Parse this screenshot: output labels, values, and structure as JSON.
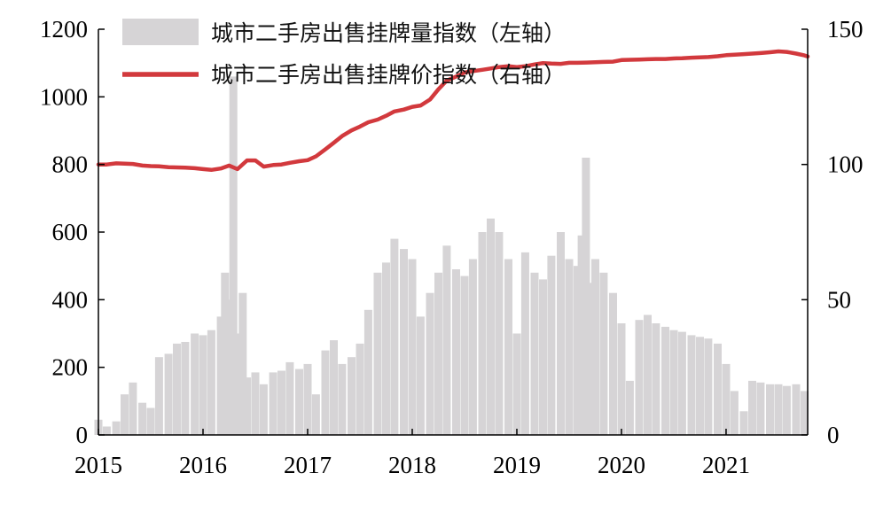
{
  "chart_data": {
    "type": "bar+line",
    "title": "",
    "x_range": [
      2015.0,
      2021.78
    ],
    "x_ticks": [
      "2015",
      "2016",
      "2017",
      "2018",
      "2019",
      "2020",
      "2021"
    ],
    "y_left": {
      "range": [
        0,
        1200
      ],
      "ticks": [
        "0",
        "200",
        "400",
        "600",
        "800",
        "1000",
        "1200"
      ]
    },
    "y_right": {
      "range": [
        0,
        150
      ],
      "ticks": [
        "0",
        "50",
        "100",
        "150"
      ]
    },
    "grid": false,
    "legend_placement": "top",
    "series": [
      {
        "name": "城市二手房出售挂牌量指数（左轴）",
        "kind": "bar",
        "axis": "left",
        "color": "#d6d4d6",
        "points": [
          [
            2015.0,
            45
          ],
          [
            2015.08,
            25
          ],
          [
            2015.17,
            40
          ],
          [
            2015.25,
            120
          ],
          [
            2015.33,
            155
          ],
          [
            2015.42,
            95
          ],
          [
            2015.5,
            80
          ],
          [
            2015.58,
            230
          ],
          [
            2015.67,
            240
          ],
          [
            2015.75,
            270
          ],
          [
            2015.83,
            275
          ],
          [
            2015.92,
            300
          ],
          [
            2016.0,
            295
          ],
          [
            2016.08,
            310
          ],
          [
            2016.17,
            350
          ],
          [
            2016.21,
            480
          ],
          [
            2016.25,
            400
          ],
          [
            2016.29,
            1060
          ],
          [
            2016.33,
            300
          ],
          [
            2016.38,
            420
          ],
          [
            2016.42,
            170
          ],
          [
            2016.5,
            185
          ],
          [
            2016.58,
            150
          ],
          [
            2016.67,
            185
          ],
          [
            2016.75,
            190
          ],
          [
            2016.83,
            215
          ],
          [
            2016.92,
            195
          ],
          [
            2017.0,
            210
          ],
          [
            2017.08,
            120
          ],
          [
            2017.17,
            250
          ],
          [
            2017.25,
            280
          ],
          [
            2017.33,
            210
          ],
          [
            2017.42,
            230
          ],
          [
            2017.5,
            270
          ],
          [
            2017.58,
            370
          ],
          [
            2017.67,
            480
          ],
          [
            2017.75,
            510
          ],
          [
            2017.83,
            580
          ],
          [
            2017.92,
            550
          ],
          [
            2018.0,
            520
          ],
          [
            2018.08,
            350
          ],
          [
            2018.17,
            420
          ],
          [
            2018.25,
            480
          ],
          [
            2018.33,
            560
          ],
          [
            2018.42,
            490
          ],
          [
            2018.5,
            470
          ],
          [
            2018.58,
            520
          ],
          [
            2018.67,
            600
          ],
          [
            2018.75,
            640
          ],
          [
            2018.83,
            600
          ],
          [
            2018.92,
            520
          ],
          [
            2019.0,
            300
          ],
          [
            2019.08,
            540
          ],
          [
            2019.17,
            480
          ],
          [
            2019.25,
            460
          ],
          [
            2019.33,
            530
          ],
          [
            2019.42,
            600
          ],
          [
            2019.5,
            520
          ],
          [
            2019.58,
            500
          ],
          [
            2019.62,
            590
          ],
          [
            2019.66,
            820
          ],
          [
            2019.7,
            450
          ],
          [
            2019.75,
            520
          ],
          [
            2019.83,
            480
          ],
          [
            2019.92,
            420
          ],
          [
            2020.0,
            330
          ],
          [
            2020.08,
            160
          ],
          [
            2020.17,
            340
          ],
          [
            2020.25,
            355
          ],
          [
            2020.33,
            330
          ],
          [
            2020.42,
            320
          ],
          [
            2020.5,
            310
          ],
          [
            2020.58,
            305
          ],
          [
            2020.67,
            295
          ],
          [
            2020.75,
            290
          ],
          [
            2020.83,
            285
          ],
          [
            2020.92,
            270
          ],
          [
            2021.0,
            210
          ],
          [
            2021.08,
            130
          ],
          [
            2021.17,
            70
          ],
          [
            2021.25,
            160
          ],
          [
            2021.33,
            155
          ],
          [
            2021.42,
            150
          ],
          [
            2021.5,
            150
          ],
          [
            2021.58,
            145
          ],
          [
            2021.67,
            150
          ],
          [
            2021.75,
            130
          ]
        ]
      },
      {
        "name": "城市二手房出售挂牌价指数（右轴）",
        "kind": "line",
        "axis": "right",
        "color": "#d2393d",
        "points": [
          [
            2015.0,
            100
          ],
          [
            2015.08,
            100
          ],
          [
            2015.17,
            100.4
          ],
          [
            2015.25,
            100.3
          ],
          [
            2015.33,
            100.2
          ],
          [
            2015.42,
            99.6
          ],
          [
            2015.5,
            99.4
          ],
          [
            2015.58,
            99.3
          ],
          [
            2015.67,
            99.0
          ],
          [
            2015.75,
            98.9
          ],
          [
            2015.83,
            98.8
          ],
          [
            2015.92,
            98.6
          ],
          [
            2016.0,
            98.3
          ],
          [
            2016.08,
            98.0
          ],
          [
            2016.17,
            98.5
          ],
          [
            2016.25,
            99.6
          ],
          [
            2016.33,
            98.3
          ],
          [
            2016.42,
            101.5
          ],
          [
            2016.5,
            101.5
          ],
          [
            2016.58,
            99.2
          ],
          [
            2016.67,
            99.8
          ],
          [
            2016.75,
            100.0
          ],
          [
            2016.83,
            100.6
          ],
          [
            2016.92,
            101.2
          ],
          [
            2017.0,
            101.6
          ],
          [
            2017.08,
            103.0
          ],
          [
            2017.17,
            105.6
          ],
          [
            2017.25,
            108.0
          ],
          [
            2017.33,
            110.5
          ],
          [
            2017.42,
            112.6
          ],
          [
            2017.5,
            114.0
          ],
          [
            2017.58,
            115.6
          ],
          [
            2017.67,
            116.6
          ],
          [
            2017.75,
            118.0
          ],
          [
            2017.83,
            119.6
          ],
          [
            2017.92,
            120.3
          ],
          [
            2018.0,
            121.3
          ],
          [
            2018.08,
            121.8
          ],
          [
            2018.17,
            124.0
          ],
          [
            2018.25,
            127.8
          ],
          [
            2018.33,
            131.0
          ],
          [
            2018.42,
            132.5
          ],
          [
            2018.5,
            134.0
          ],
          [
            2018.58,
            134.5
          ],
          [
            2018.67,
            135.0
          ],
          [
            2018.75,
            135.5
          ],
          [
            2018.83,
            136.0
          ],
          [
            2018.92,
            136.3
          ],
          [
            2019.0,
            136.0
          ],
          [
            2019.08,
            136.3
          ],
          [
            2019.17,
            137.0
          ],
          [
            2019.25,
            137.5
          ],
          [
            2019.33,
            137.3
          ],
          [
            2019.42,
            137.2
          ],
          [
            2019.5,
            137.6
          ],
          [
            2019.58,
            137.6
          ],
          [
            2019.67,
            137.7
          ],
          [
            2019.75,
            137.8
          ],
          [
            2019.83,
            137.9
          ],
          [
            2019.92,
            138.0
          ],
          [
            2020.0,
            138.6
          ],
          [
            2020.08,
            138.7
          ],
          [
            2020.17,
            138.8
          ],
          [
            2020.25,
            138.9
          ],
          [
            2020.33,
            139.0
          ],
          [
            2020.42,
            139.0
          ],
          [
            2020.5,
            139.2
          ],
          [
            2020.58,
            139.3
          ],
          [
            2020.67,
            139.5
          ],
          [
            2020.75,
            139.6
          ],
          [
            2020.83,
            139.7
          ],
          [
            2020.92,
            140.0
          ],
          [
            2021.0,
            140.4
          ],
          [
            2021.08,
            140.6
          ],
          [
            2021.17,
            140.8
          ],
          [
            2021.25,
            141.0
          ],
          [
            2021.33,
            141.2
          ],
          [
            2021.42,
            141.5
          ],
          [
            2021.5,
            141.8
          ],
          [
            2021.58,
            141.6
          ],
          [
            2021.67,
            141.0
          ],
          [
            2021.75,
            140.3
          ],
          [
            2021.78,
            139.9
          ]
        ]
      }
    ]
  }
}
